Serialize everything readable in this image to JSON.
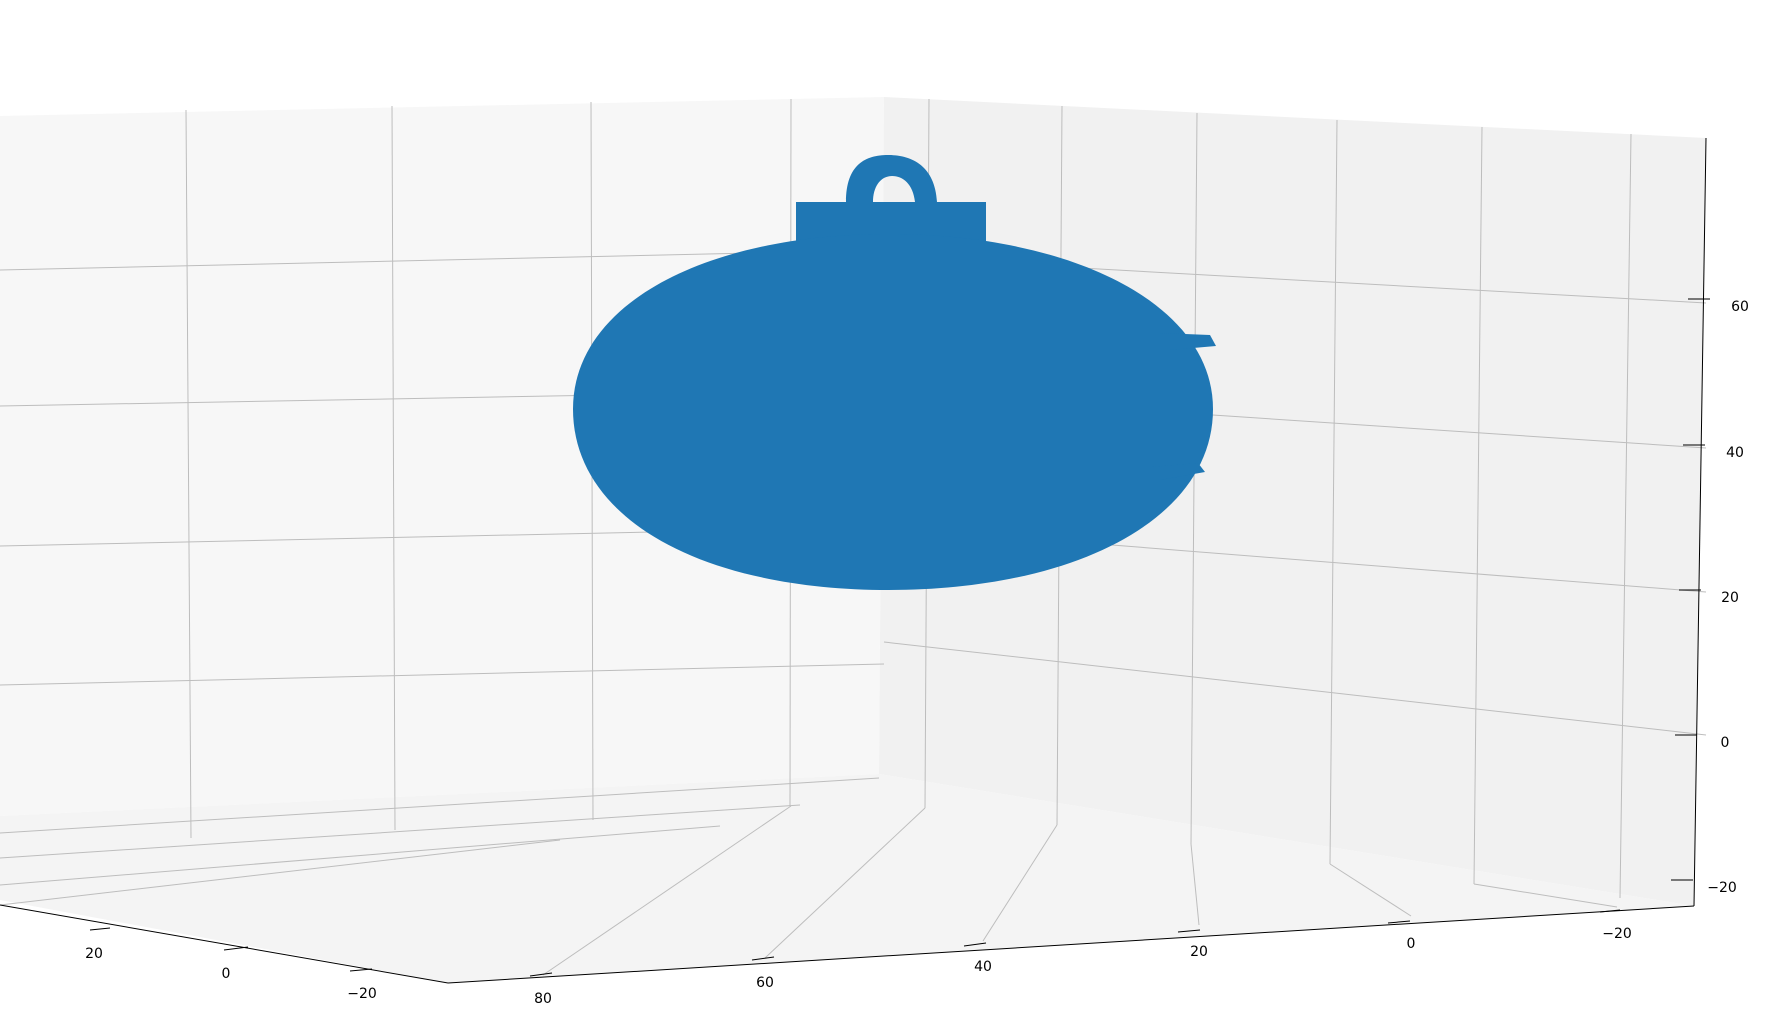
{
  "chart_data": {
    "type": "surface3d",
    "title": "",
    "xlabel": "",
    "ylabel": "",
    "zlabel": "",
    "grid": true,
    "color": "#1f77b4",
    "pane_colors": {
      "left": "#f7f7f7",
      "right": "#f1f1f1",
      "floor": "#f4f4f4",
      "grid": "#bdbdbd"
    },
    "axes": {
      "left_axis": {
        "ticks": [
          {
            "label": "20"
          },
          {
            "label": "0"
          },
          {
            "label": "−20"
          }
        ]
      },
      "front_axis": {
        "ticks": [
          {
            "label": "80"
          },
          {
            "label": "60"
          },
          {
            "label": "40"
          },
          {
            "label": "20"
          },
          {
            "label": "0"
          },
          {
            "label": "−20"
          }
        ]
      },
      "z_axis": {
        "ticks": [
          {
            "label": "60",
            "value": 60
          },
          {
            "label": "40",
            "value": 40
          },
          {
            "label": "20",
            "value": 20
          },
          {
            "label": "0",
            "value": 0
          },
          {
            "label": "−20",
            "value": -20
          }
        ]
      }
    },
    "object": {
      "name": "ornament",
      "parts": [
        "body",
        "cap",
        "hanging-loop",
        "side-fins"
      ]
    }
  }
}
